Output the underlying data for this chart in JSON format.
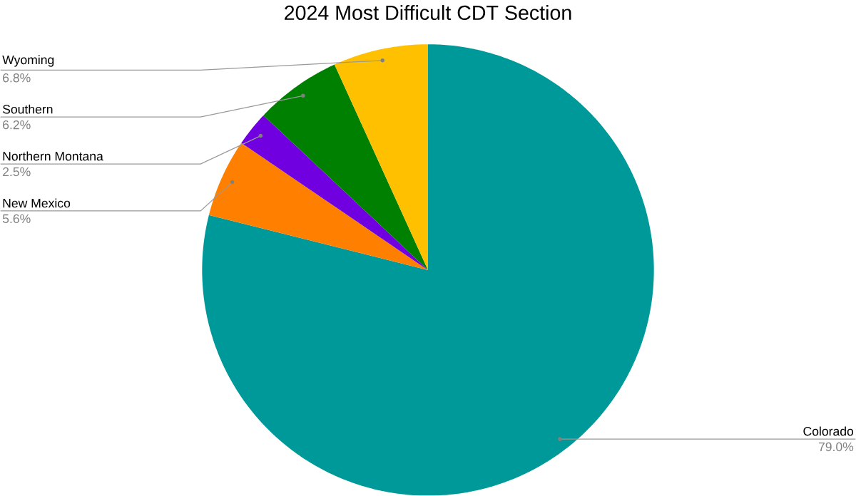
{
  "chart_data": {
    "type": "pie",
    "title": "2024 Most Difficult CDT Section",
    "categories": [
      "Colorado",
      "New Mexico",
      "Northern Montana",
      "Southern",
      "Wyoming"
    ],
    "values": [
      79.0,
      5.6,
      2.5,
      6.2,
      6.8
    ],
    "value_labels": [
      "79.0%",
      "5.6%",
      "2.5%",
      "6.2%",
      "6.8%"
    ],
    "colors": [
      "#009999",
      "#ff8000",
      "#7100e0",
      "#008000",
      "#ffc000"
    ]
  }
}
